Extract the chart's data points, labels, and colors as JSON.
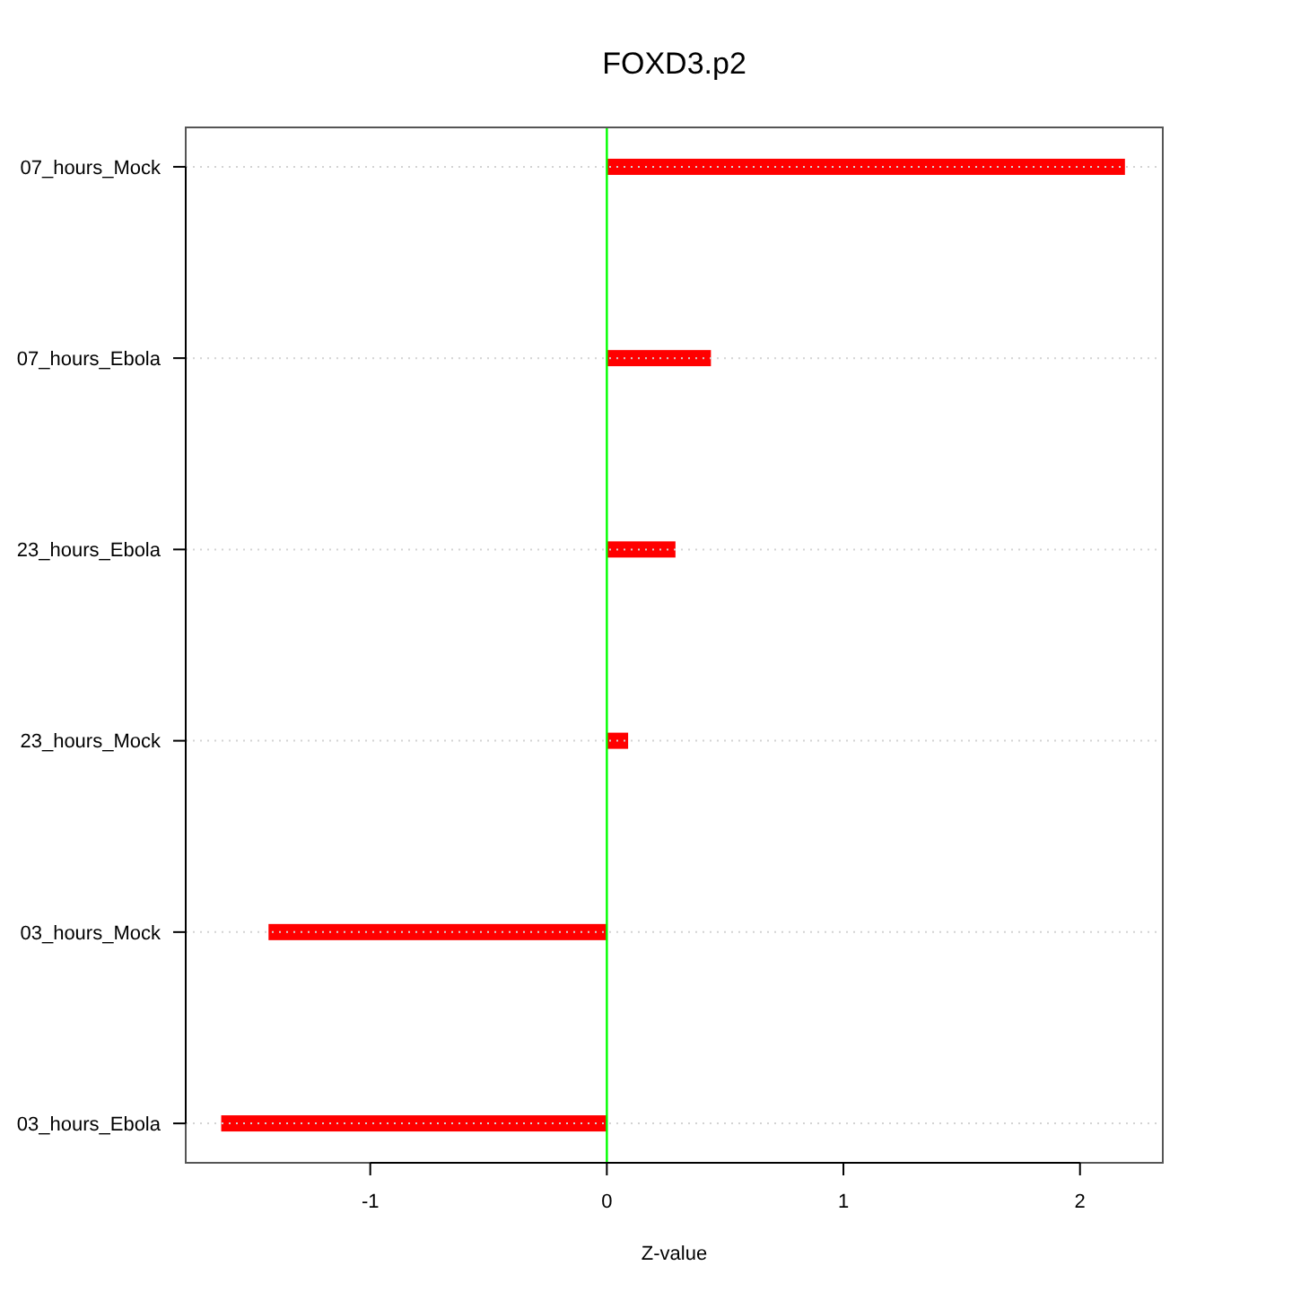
{
  "chart_data": {
    "type": "bar",
    "title": "FOXD3.p2",
    "xlabel": "Z-value",
    "orientation": "horizontal",
    "categories": [
      "07_hours_Mock",
      "07_hours_Ebola",
      "23_hours_Ebola",
      "23_hours_Mock",
      "03_hours_Mock",
      "03_hours_Ebola"
    ],
    "values": [
      2.19,
      0.44,
      0.29,
      0.09,
      -1.43,
      -1.63
    ],
    "color": "#ff0000",
    "xlim": [
      -1.78,
      2.35
    ],
    "xticks": [
      -1,
      0,
      1,
      2
    ],
    "grid": "y",
    "ref_lines": [
      {
        "axis": "x",
        "value": 0,
        "color": "#00ff00"
      }
    ]
  }
}
